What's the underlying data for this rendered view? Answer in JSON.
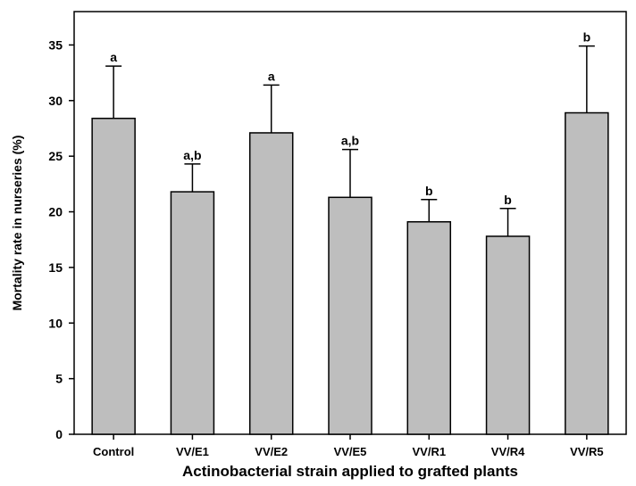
{
  "chart_data": {
    "type": "bar",
    "title": "",
    "xlabel": "Actinobacterial strain applied to grafted plants",
    "ylabel": "Mortality rate in nurseries (%)",
    "ylim": [
      0,
      38
    ],
    "yticks": [
      0,
      5,
      10,
      15,
      20,
      25,
      30,
      35
    ],
    "categories": [
      "Control",
      "VV/E1",
      "VV/E2",
      "VV/E5",
      "VV/R1",
      "VV/R4",
      "VV/R5"
    ],
    "series": [
      {
        "values": [
          28.4,
          21.8,
          27.1,
          21.3,
          19.1,
          17.8,
          28.9
        ],
        "error_upper": [
          4.7,
          2.5,
          4.3,
          4.3,
          2.0,
          2.5,
          6.0
        ],
        "significance_letters": [
          "a",
          "a,b",
          "a",
          "a,b",
          "b",
          "b",
          "b"
        ]
      }
    ],
    "bar_color": "#bebebe",
    "grid": false,
    "legend": "none"
  }
}
